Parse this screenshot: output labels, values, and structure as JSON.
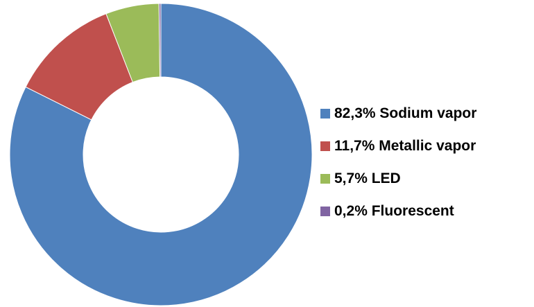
{
  "chart_data": {
    "type": "donut",
    "categories": [
      "Sodium vapor",
      "Metallic vapor",
      "LED",
      "Fluorescent"
    ],
    "values": [
      82.3,
      11.7,
      5.7,
      0.2
    ],
    "value_labels": [
      "82,3%",
      "11,7%",
      "5,7%",
      "0,2%"
    ],
    "colors": [
      "#4f81bd",
      "#c0504d",
      "#9bbb59",
      "#8064a2"
    ],
    "legend": "right"
  }
}
